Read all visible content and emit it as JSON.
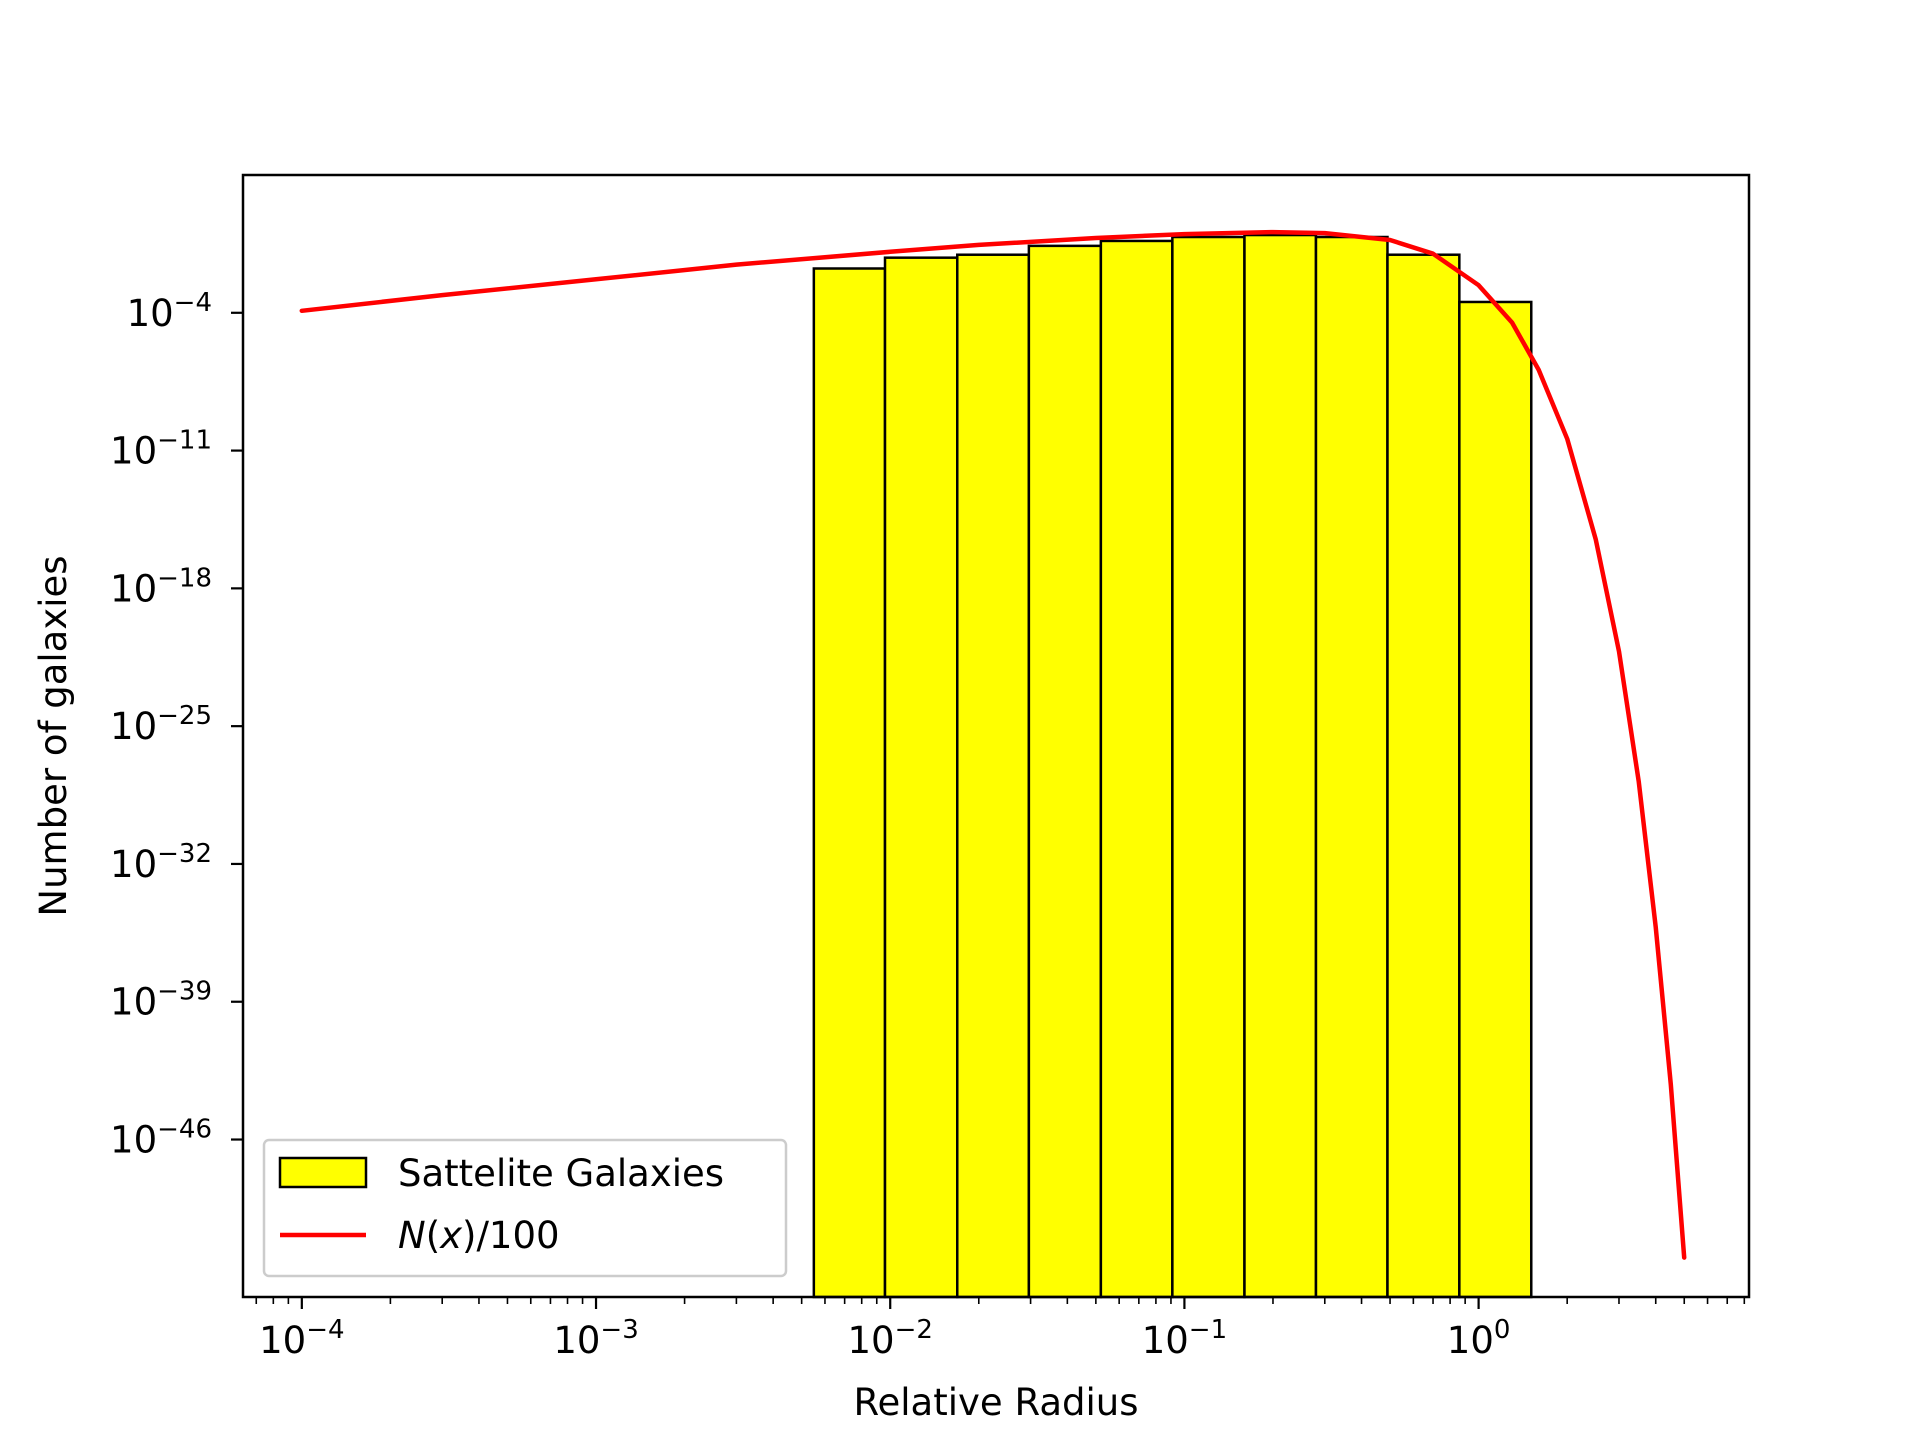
{
  "chart_data": {
    "type": "bar",
    "xlabel": "Relative Radius",
    "ylabel": "Number of galaxies",
    "xscale": "log",
    "yscale": "log",
    "xlim": [
      6.31e-05,
      8.3
    ],
    "ylim_exponent": [
      -54,
      3
    ],
    "xticks": [
      {
        "base": "10",
        "exp": "−4",
        "value": 0.0001
      },
      {
        "base": "10",
        "exp": "−3",
        "value": 0.001
      },
      {
        "base": "10",
        "exp": "−2",
        "value": 0.01
      },
      {
        "base": "10",
        "exp": "−1",
        "value": 0.1
      },
      {
        "base": "10",
        "exp": "0",
        "value": 1
      }
    ],
    "yticks": [
      {
        "base": "10",
        "exp": "−4",
        "value_exp": -4
      },
      {
        "base": "10",
        "exp": "−11",
        "value_exp": -11
      },
      {
        "base": "10",
        "exp": "−18",
        "value_exp": -18
      },
      {
        "base": "10",
        "exp": "−25",
        "value_exp": -25
      },
      {
        "base": "10",
        "exp": "−32",
        "value_exp": -32
      },
      {
        "base": "10",
        "exp": "−39",
        "value_exp": -39
      },
      {
        "base": "10",
        "exp": "−46",
        "value_exp": -46
      }
    ],
    "histogram": {
      "name": "Sattelite Galaxies",
      "color": "#ffff00",
      "edgecolor": "#000000",
      "bin_edges": [
        0.0055,
        0.0096,
        0.0169,
        0.0296,
        0.052,
        0.091,
        0.16,
        0.28,
        0.49,
        0.86,
        1.51
      ],
      "values_exp": [
        -1.75,
        -1.2,
        -1.05,
        -0.6,
        -0.35,
        -0.15,
        -0.05,
        -0.15,
        -1.05,
        -3.45
      ]
    },
    "curve": {
      "name_parts": [
        "N",
        "(",
        "x",
        ")/100"
      ],
      "color": "#ff0000",
      "points": [
        [
          0.0001,
          -3.9
        ],
        [
          0.0003,
          -3.1
        ],
        [
          0.001,
          -2.3
        ],
        [
          0.003,
          -1.55
        ],
        [
          0.01,
          -0.9
        ],
        [
          0.02,
          -0.55
        ],
        [
          0.05,
          -0.2
        ],
        [
          0.1,
          0.0
        ],
        [
          0.2,
          0.1
        ],
        [
          0.3,
          0.05
        ],
        [
          0.5,
          -0.3
        ],
        [
          0.7,
          -1.0
        ],
        [
          1.0,
          -2.6
        ],
        [
          1.3,
          -4.5
        ],
        [
          1.6,
          -6.9
        ],
        [
          2.0,
          -10.4
        ],
        [
          2.5,
          -15.5
        ],
        [
          3.0,
          -21.2
        ],
        [
          3.5,
          -27.8
        ],
        [
          4.0,
          -35.2
        ],
        [
          4.5,
          -43.2
        ],
        [
          5.0,
          -52.0
        ]
      ]
    },
    "legend_position": "lower-left",
    "grid": false
  }
}
